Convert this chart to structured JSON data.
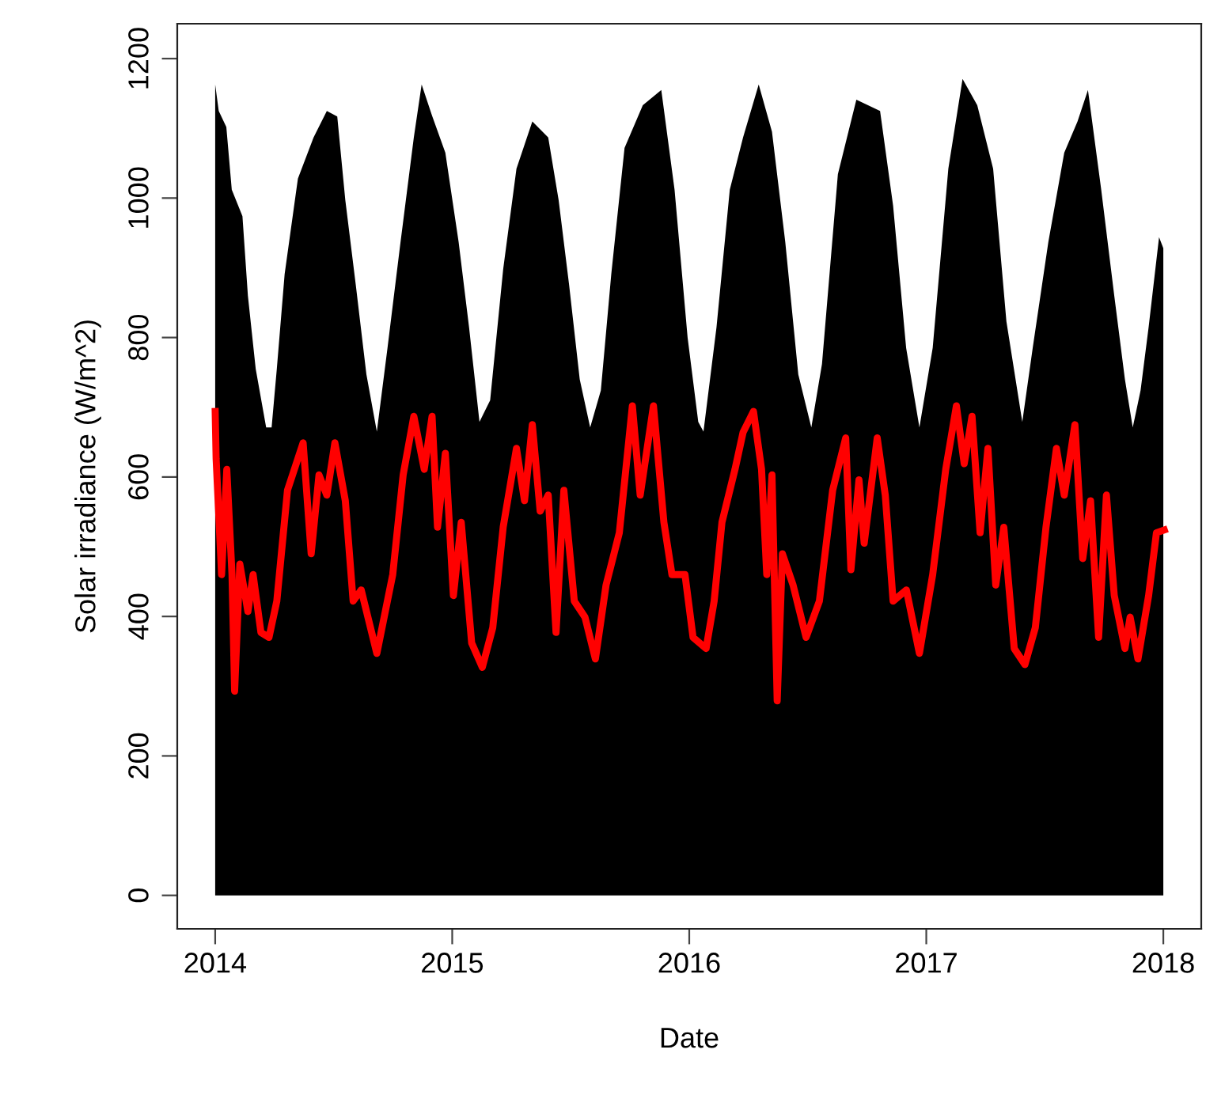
{
  "chart_data": {
    "type": "line",
    "xlabel": "Date",
    "ylabel": "Solar irradiance (W/m^2)",
    "xlim": [
      2013.84,
      2018.16
    ],
    "xticks": [
      2014,
      2015,
      2016,
      2017,
      2018
    ],
    "ylim": [
      -48,
      1250
    ],
    "yticks": [
      0,
      200,
      400,
      600,
      800,
      1000,
      1200
    ],
    "grid": false,
    "legend": false,
    "series": [
      {
        "type": "area",
        "color": "#000000",
        "x": [
          2014.0,
          2014.015,
          2014.047,
          2014.07,
          2014.115,
          2014.138,
          2014.171,
          2014.215,
          2014.238,
          2014.26,
          2014.293,
          2014.349,
          2014.415,
          2014.471,
          2014.515,
          2014.549,
          2014.593,
          2014.638,
          2014.682,
          2014.727,
          2014.782,
          2014.838,
          2014.871,
          2014.915,
          2014.971,
          2015.027,
          2015.071,
          2015.115,
          2015.16,
          2015.215,
          2015.271,
          2015.338,
          2015.405,
          2015.449,
          2015.493,
          2015.538,
          2015.582,
          2015.627,
          2015.671,
          2015.727,
          2015.804,
          2015.882,
          2015.938,
          2015.993,
          2016.038,
          2016.06,
          2016.115,
          2016.171,
          2016.227,
          2016.293,
          2016.349,
          2016.405,
          2016.46,
          2016.515,
          2016.56,
          2016.627,
          2016.705,
          2016.805,
          2016.86,
          2016.915,
          2016.971,
          2017.027,
          2017.093,
          2017.153,
          2017.215,
          2017.282,
          2017.338,
          2017.405,
          2017.449,
          2017.515,
          2017.582,
          2017.638,
          2017.682,
          2017.738,
          2017.793,
          2017.838,
          2017.871,
          2017.904,
          2017.938,
          2017.982,
          2018.0
        ],
        "values": [
          1163,
          1125,
          1102,
          1012,
          974,
          860,
          755,
          671,
          671,
          755,
          891,
          1028,
          1087,
          1125,
          1117,
          997,
          876,
          747,
          665,
          785,
          937,
          1087,
          1163,
          1118,
          1065,
          937,
          815,
          679,
          710,
          898,
          1042,
          1110,
          1087,
          997,
          876,
          740,
          671,
          724,
          891,
          1072,
          1133,
          1155,
          1012,
          800,
          679,
          665,
          815,
          1012,
          1087,
          1163,
          1095,
          937,
          747,
          671,
          762,
          1034,
          1141,
          1125,
          989,
          785,
          671,
          785,
          1042,
          1171,
          1133,
          1042,
          823,
          679,
          785,
          937,
          1065,
          1110,
          1155,
          1012,
          860,
          740,
          671,
          724,
          815,
          944,
          928
        ]
      },
      {
        "color": "#ff0000",
        "x": [
          2014.0,
          2014.004,
          2014.027,
          2014.049,
          2014.071,
          2014.082,
          2014.104,
          2014.138,
          2014.16,
          2014.193,
          2014.227,
          2014.26,
          2014.305,
          2014.371,
          2014.405,
          2014.438,
          2014.471,
          2014.505,
          2014.549,
          2014.582,
          2014.616,
          2014.682,
          2014.749,
          2014.793,
          2014.838,
          2014.882,
          2014.915,
          2014.938,
          2014.971,
          2015.005,
          2015.038,
          2015.082,
          2015.127,
          2015.171,
          2015.215,
          2015.271,
          2015.305,
          2015.338,
          2015.371,
          2015.405,
          2015.438,
          2015.471,
          2015.515,
          2015.56,
          2015.604,
          2015.649,
          2015.705,
          2015.76,
          2015.793,
          2015.849,
          2015.893,
          2015.927,
          2015.982,
          2016.016,
          2016.071,
          2016.105,
          2016.138,
          2016.193,
          2016.227,
          2016.271,
          2016.305,
          2016.327,
          2016.349,
          2016.371,
          2016.393,
          2016.438,
          2016.493,
          2016.549,
          2016.605,
          2016.66,
          2016.682,
          2016.716,
          2016.738,
          2016.793,
          2016.827,
          2016.86,
          2016.916,
          2016.971,
          2017.027,
          2017.082,
          2017.127,
          2017.16,
          2017.193,
          2017.227,
          2017.26,
          2017.293,
          2017.327,
          2017.371,
          2017.416,
          2017.46,
          2017.505,
          2017.549,
          2017.582,
          2017.627,
          2017.66,
          2017.693,
          2017.727,
          2017.76,
          2017.793,
          2017.838,
          2017.86,
          2017.893,
          2017.938,
          2017.971,
          2018.004
        ],
        "values": [
          694,
          626,
          460,
          611,
          460,
          293,
          475,
          407,
          460,
          377,
          370,
          422,
          581,
          649,
          490,
          603,
          574,
          649,
          566,
          422,
          438,
          347,
          460,
          603,
          687,
          611,
          687,
          528,
          634,
          430,
          535,
          362,
          327,
          384,
          528,
          641,
          566,
          675,
          551,
          574,
          377,
          581,
          422,
          399,
          339,
          445,
          520,
          702,
          574,
          702,
          535,
          460,
          460,
          370,
          354,
          422,
          535,
          611,
          664,
          694,
          611,
          460,
          603,
          279,
          490,
          445,
          370,
          422,
          581,
          656,
          467,
          596,
          505,
          656,
          574,
          422,
          438,
          347,
          460,
          611,
          702,
          619,
          687,
          520,
          641,
          445,
          528,
          354,
          331,
          384,
          528,
          641,
          574,
          675,
          483,
          566,
          370,
          574,
          430,
          354,
          399,
          339,
          430,
          520,
          524
        ]
      }
    ]
  }
}
